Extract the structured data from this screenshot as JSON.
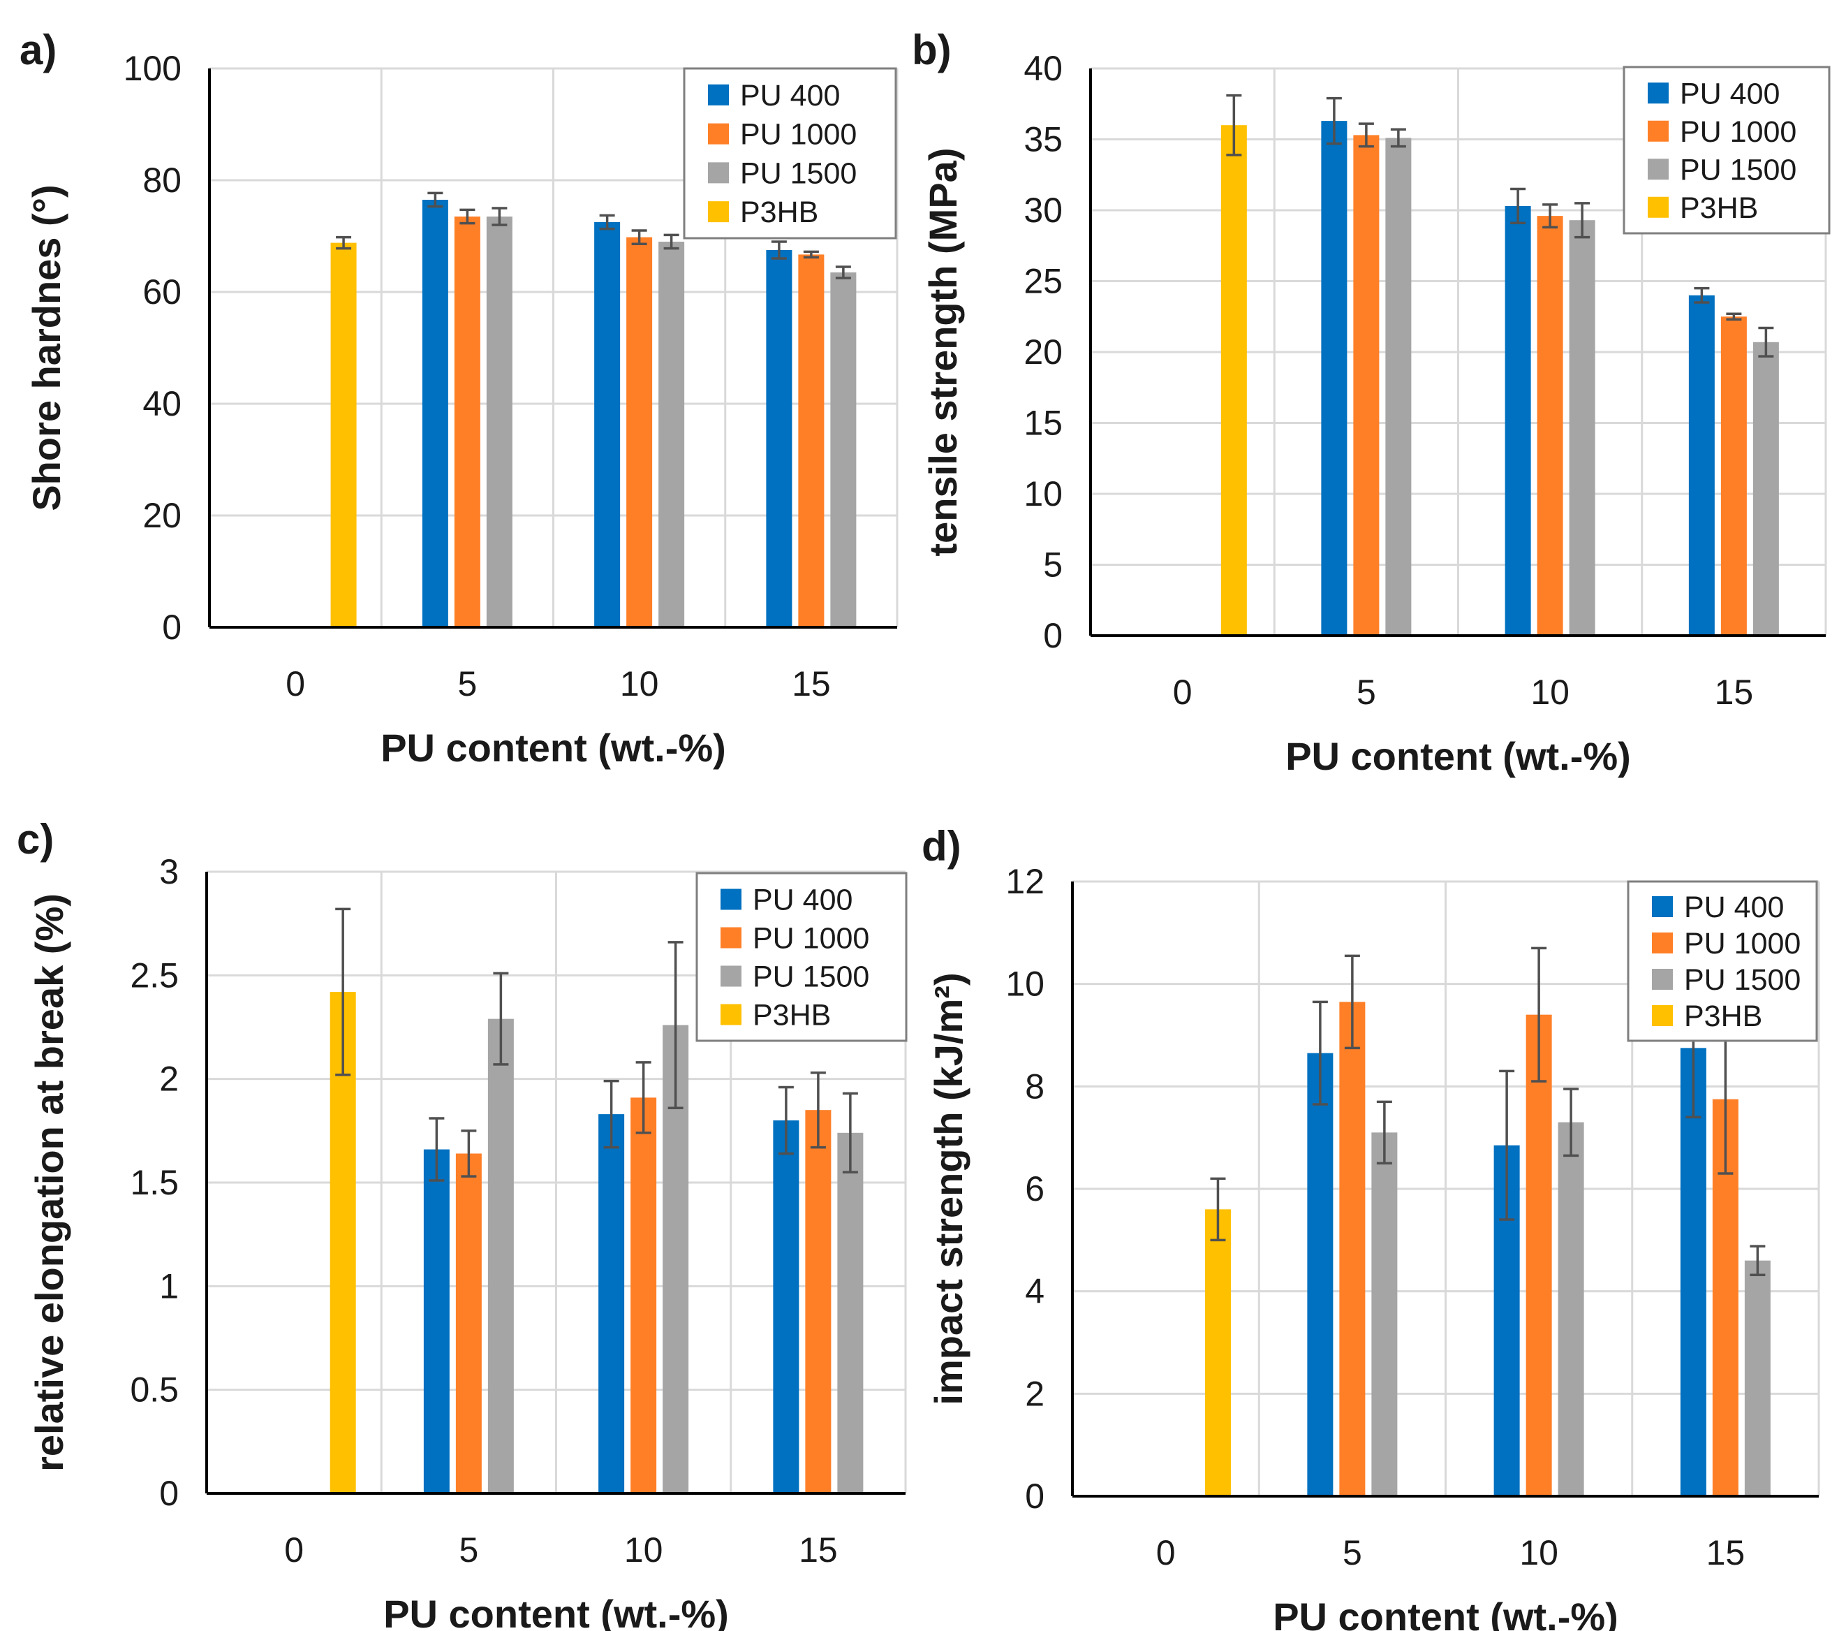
{
  "figure": {
    "colors": {
      "PU 400": "#0070C0",
      "PU 1000": "#FF7F27",
      "PU 1500": "#A5A5A5",
      "P3HB": "#FFC000",
      "error_bar": "#505050",
      "grid": "#D9D9D9",
      "axis": "#000000"
    },
    "legend_labels": [
      "PU 400",
      "PU 1000",
      "PU 1500",
      "P3HB"
    ]
  },
  "chart_data": [
    {
      "panel_label": "a)",
      "type": "bar",
      "xlabel": "PU content (wt.-%)",
      "ylabel": "Shore hardnes (°)",
      "categories": [
        "0",
        "5",
        "10",
        "15"
      ],
      "ylim": [
        0,
        100
      ],
      "yticks": [
        "0",
        "20",
        "40",
        "60",
        "80",
        "100"
      ],
      "grid": true,
      "legend_position": "top-right",
      "series": [
        {
          "name": "PU 400",
          "values": [
            null,
            76.5,
            72.5,
            67.5
          ],
          "errors": [
            null,
            1.2,
            1.2,
            1.5
          ]
        },
        {
          "name": "PU 1000",
          "values": [
            null,
            73.5,
            69.8,
            66.7
          ],
          "errors": [
            null,
            1.2,
            1.2,
            0.5
          ]
        },
        {
          "name": "PU 1500",
          "values": [
            null,
            73.5,
            69.0,
            63.5
          ],
          "errors": [
            null,
            1.5,
            1.2,
            1.0
          ]
        },
        {
          "name": "P3HB",
          "values": [
            68.8,
            null,
            null,
            null
          ],
          "errors": [
            1.0,
            null,
            null,
            null
          ]
        }
      ]
    },
    {
      "panel_label": "b)",
      "type": "bar",
      "xlabel": "PU content (wt.-%)",
      "ylabel": "tensile strength (MPa)",
      "categories": [
        "0",
        "5",
        "10",
        "15"
      ],
      "ylim": [
        0,
        40
      ],
      "yticks": [
        "0",
        "5",
        "10",
        "15",
        "20",
        "25",
        "30",
        "35",
        "40"
      ],
      "grid": true,
      "legend_position": "top-right",
      "series": [
        {
          "name": "PU 400",
          "values": [
            null,
            36.3,
            30.3,
            24.0
          ],
          "errors": [
            null,
            1.6,
            1.2,
            0.5
          ]
        },
        {
          "name": "PU 1000",
          "values": [
            null,
            35.3,
            29.6,
            22.5
          ],
          "errors": [
            null,
            0.8,
            0.8,
            0.2
          ]
        },
        {
          "name": "PU 1500",
          "values": [
            null,
            35.1,
            29.3,
            20.7
          ],
          "errors": [
            null,
            0.6,
            1.2,
            1.0
          ]
        },
        {
          "name": "P3HB",
          "values": [
            36.0,
            null,
            null,
            null
          ],
          "errors": [
            2.1,
            null,
            null,
            null
          ]
        }
      ]
    },
    {
      "panel_label": "c)",
      "type": "bar",
      "xlabel": "PU content (wt.-%)",
      "ylabel": "relative elongation at break (%)",
      "categories": [
        "0",
        "5",
        "10",
        "15"
      ],
      "ylim": [
        0,
        3
      ],
      "yticks": [
        "0",
        "0.5",
        "1",
        "1.5",
        "2",
        "2.5",
        "3"
      ],
      "grid": true,
      "legend_position": "top-right",
      "series": [
        {
          "name": "PU 400",
          "values": [
            null,
            1.66,
            1.83,
            1.8
          ],
          "errors": [
            null,
            0.15,
            0.16,
            0.16
          ]
        },
        {
          "name": "PU 1000",
          "values": [
            null,
            1.64,
            1.91,
            1.85
          ],
          "errors": [
            null,
            0.11,
            0.17,
            0.18
          ]
        },
        {
          "name": "PU 1500",
          "values": [
            null,
            2.29,
            2.26,
            1.74
          ],
          "errors": [
            null,
            0.22,
            0.4,
            0.19
          ]
        },
        {
          "name": "P3HB",
          "values": [
            2.42,
            null,
            null,
            null
          ],
          "errors": [
            0.4,
            null,
            null,
            null
          ]
        }
      ]
    },
    {
      "panel_label": "d)",
      "type": "bar",
      "xlabel": "PU content (wt.-%)",
      "ylabel": "impact strength (kJ/m²)",
      "categories": [
        "0",
        "5",
        "10",
        "15"
      ],
      "ylim": [
        0,
        12
      ],
      "yticks": [
        "0",
        "2",
        "4",
        "6",
        "8",
        "10",
        "12"
      ],
      "grid": true,
      "legend_position": "top-right",
      "series": [
        {
          "name": "PU 400",
          "values": [
            null,
            8.65,
            6.85,
            8.75
          ],
          "errors": [
            null,
            1.0,
            1.45,
            1.35
          ]
        },
        {
          "name": "PU 1000",
          "values": [
            null,
            9.65,
            9.4,
            7.75
          ],
          "errors": [
            null,
            0.9,
            1.3,
            1.45
          ]
        },
        {
          "name": "PU 1500",
          "values": [
            null,
            7.1,
            7.3,
            4.6
          ],
          "errors": [
            null,
            0.6,
            0.65,
            0.28
          ]
        },
        {
          "name": "P3HB",
          "values": [
            5.6,
            null,
            null,
            null
          ],
          "errors": [
            0.6,
            null,
            null,
            null
          ]
        }
      ]
    }
  ]
}
